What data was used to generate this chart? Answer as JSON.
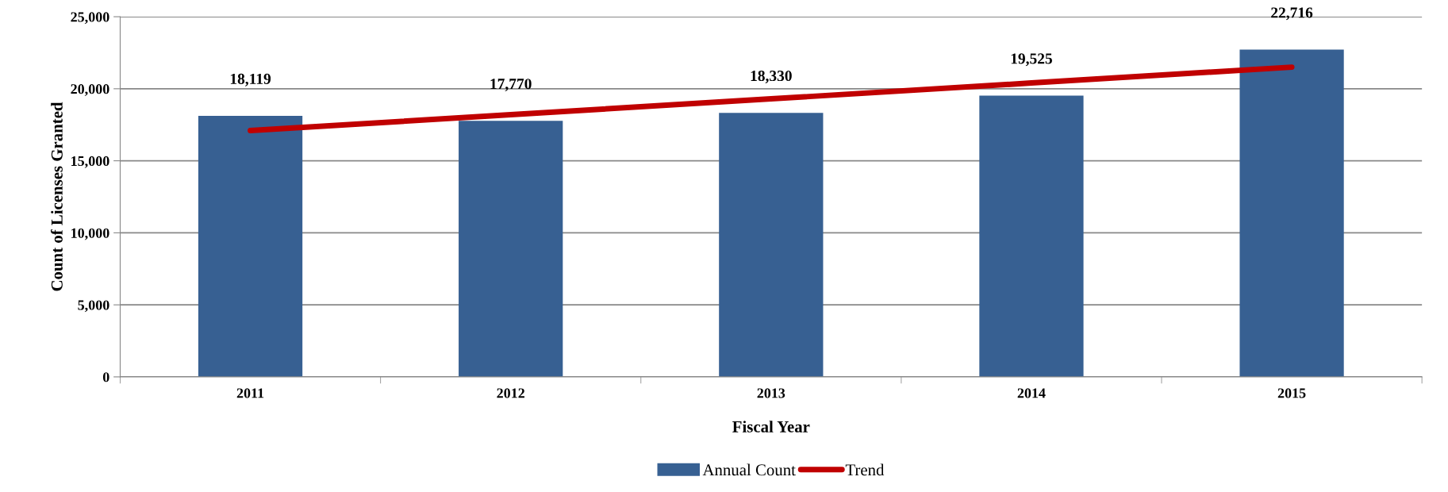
{
  "chart_data": {
    "type": "bar",
    "xlabel": "Fiscal Year",
    "ylabel": "Count of Licenses Granted",
    "categories": [
      "2011",
      "2012",
      "2013",
      "2014",
      "2015"
    ],
    "series": [
      {
        "name": "Annual Count",
        "color": "#376092",
        "values": [
          18119,
          17770,
          18330,
          19525,
          22716
        ],
        "value_labels": [
          "18,119",
          "17,770",
          "18,330",
          "19,525",
          "22,716"
        ]
      },
      {
        "name": "Trend",
        "type": "line",
        "color": "#c00000",
        "values": [
          17100,
          18200,
          19300,
          20400,
          21500
        ]
      }
    ],
    "ylim": [
      0,
      25000
    ],
    "yticks": [
      {
        "value": 0,
        "label": "0"
      },
      {
        "value": 5000,
        "label": "5,000"
      },
      {
        "value": 10000,
        "label": "10,000"
      },
      {
        "value": 15000,
        "label": "15,000"
      },
      {
        "value": 20000,
        "label": "20,000"
      },
      {
        "value": 25000,
        "label": "25,000"
      }
    ],
    "grid": "y",
    "legend": "bottom",
    "marker": "none",
    "line_style": "solid"
  }
}
